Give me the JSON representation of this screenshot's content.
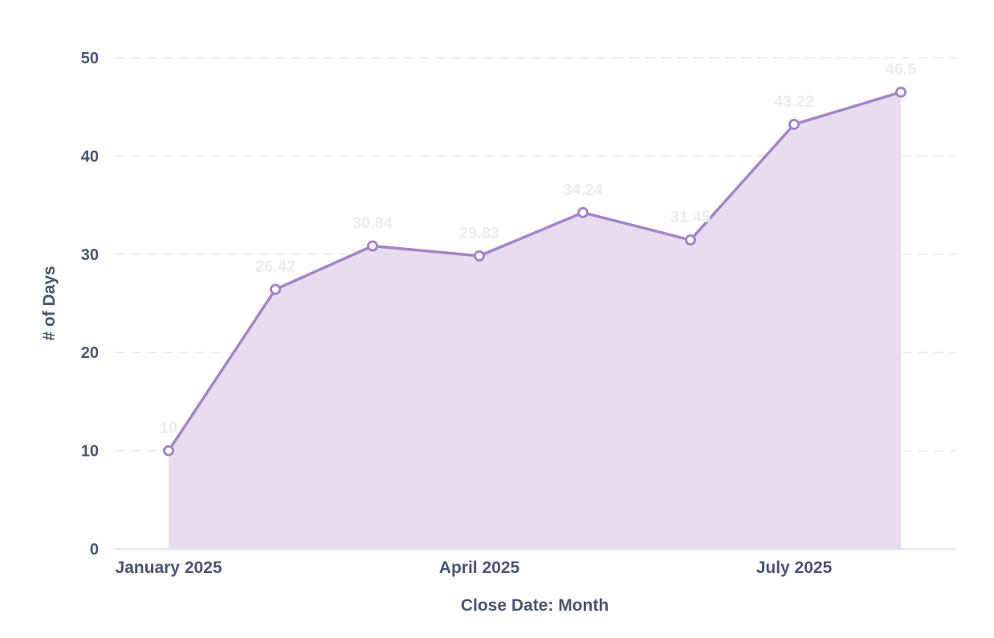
{
  "chart_data": {
    "type": "area",
    "title": "",
    "xlabel": "Close Date: Month",
    "ylabel": "# of Days",
    "ylim": [
      0,
      50
    ],
    "yticks": [
      0,
      10,
      20,
      30,
      40,
      50
    ],
    "grid": true,
    "x": [
      "January 2025",
      "February 2025",
      "March 2025",
      "April 2025",
      "May 2025",
      "June 2025",
      "July 2025",
      "August 2025"
    ],
    "x_tick_labels": [
      "January 2025",
      "April 2025",
      "July 2025"
    ],
    "series": [
      {
        "values": [
          10,
          26.42,
          30.84,
          29.83,
          34.24,
          31.45,
          43.22,
          46.5
        ],
        "labels": [
          "10",
          "26.42",
          "30.84",
          "29.83",
          "34.24",
          "31.45",
          "43.22",
          "46.5"
        ]
      }
    ],
    "colors": {
      "line": "#a585c9",
      "fill": "#e8dcef",
      "marker_fill": "#ffffff"
    }
  }
}
